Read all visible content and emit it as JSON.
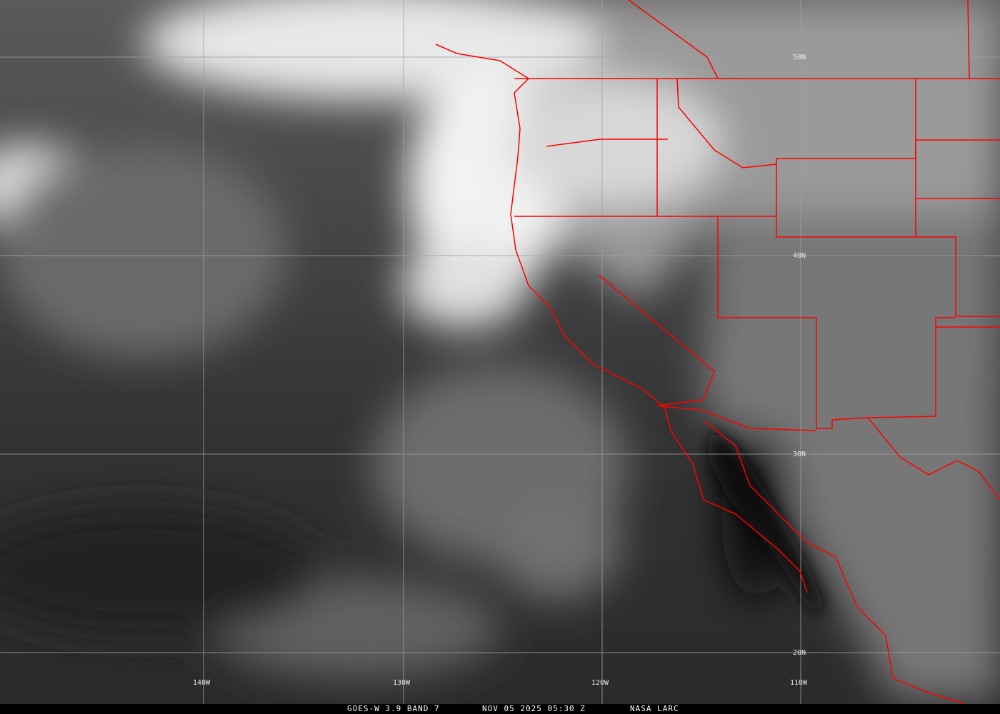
{
  "caption": {
    "satellite": "GOES-W 3.9 BAND 7",
    "datetime": "NOV 05 2025 05:30 Z",
    "source": "NASA LARC"
  },
  "lat_labels": [
    "50N",
    "40N",
    "30N",
    "20N"
  ],
  "lon_labels": [
    "140W",
    "130W",
    "120W",
    "110W"
  ],
  "colors": {
    "borders": "#ff0000",
    "grid": "#a0a0a0",
    "background": "#3a3a3a"
  }
}
